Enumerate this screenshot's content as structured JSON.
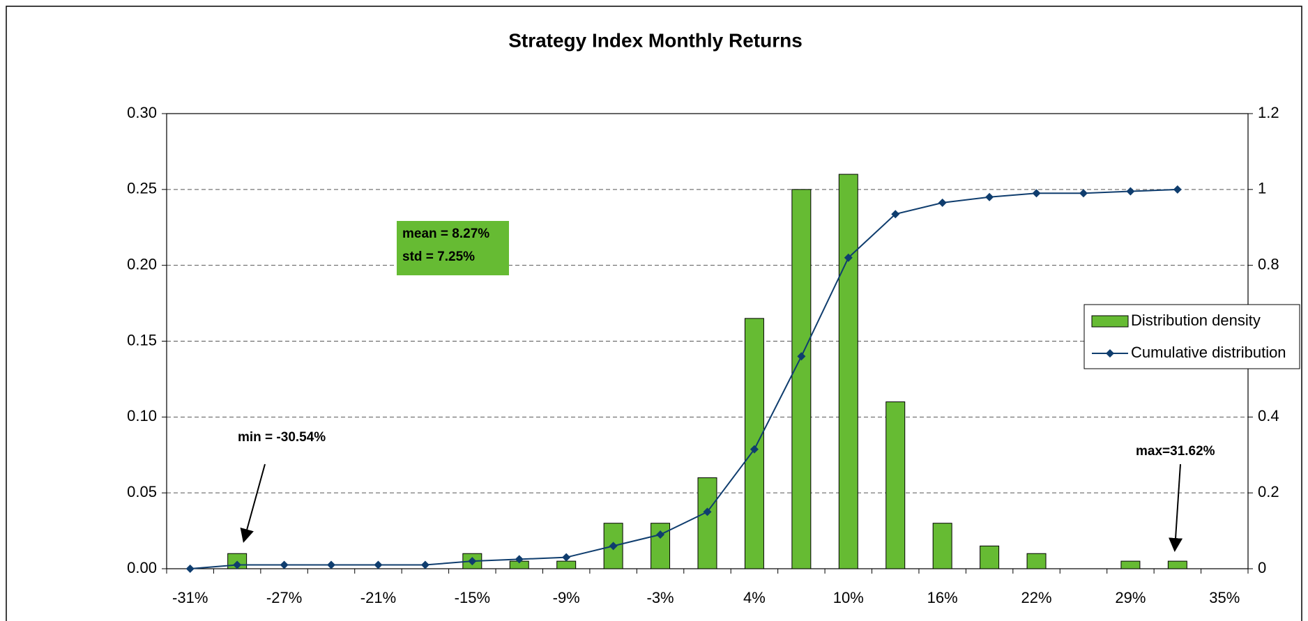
{
  "chart_data": {
    "type": "bar",
    "title": "Strategy Index Monthly Returns",
    "categories": [
      "-31%",
      null,
      "-27%",
      null,
      "-21%",
      null,
      "-15%",
      null,
      "-9%",
      null,
      "-3%",
      null,
      "4%",
      null,
      "10%",
      null,
      "16%",
      null,
      "22%",
      null,
      "29%",
      null,
      "35%"
    ],
    "series": [
      {
        "name": "Distribution density",
        "type": "bar",
        "color": "#66bb33",
        "values": [
          0,
          0.01,
          0,
          0,
          0,
          0,
          0.01,
          0.005,
          0.005,
          0.03,
          0.03,
          0.06,
          0.165,
          0.25,
          0.26,
          0.11,
          0.03,
          0.015,
          0.01,
          0,
          0.005,
          0.005,
          null
        ]
      },
      {
        "name": "Cumulative distribution",
        "type": "line",
        "axis": "y2",
        "color": "#0f3d6e",
        "values": [
          0,
          0.01,
          0.01,
          0.01,
          0.01,
          0.01,
          0.02,
          0.025,
          0.03,
          0.06,
          0.09,
          0.15,
          0.315,
          0.56,
          0.82,
          0.935,
          0.965,
          0.98,
          0.99,
          0.99,
          0.995,
          1,
          null
        ]
      }
    ],
    "ylim": [
      0,
      0.3
    ],
    "yticks": [
      {
        "value": 0,
        "label": "0.00"
      },
      {
        "value": 0.05,
        "label": "0.05"
      },
      {
        "value": 0.1,
        "label": "0.10"
      },
      {
        "value": 0.15,
        "label": "0.15"
      },
      {
        "value": 0.2,
        "label": "0.20"
      },
      {
        "value": 0.25,
        "label": "0.25"
      },
      {
        "value": 0.3,
        "label": "0.30"
      }
    ],
    "y2lim": [
      0,
      1.2
    ],
    "y2ticks": [
      0,
      0.2,
      0.4,
      0.6,
      0.8,
      1,
      1.2
    ],
    "grid": true,
    "legend": "right",
    "annotations": {
      "mean": "mean = 8.27%",
      "std": "std = 7.25%",
      "min": "min = -30.54%",
      "max": "max=31.62%"
    }
  }
}
